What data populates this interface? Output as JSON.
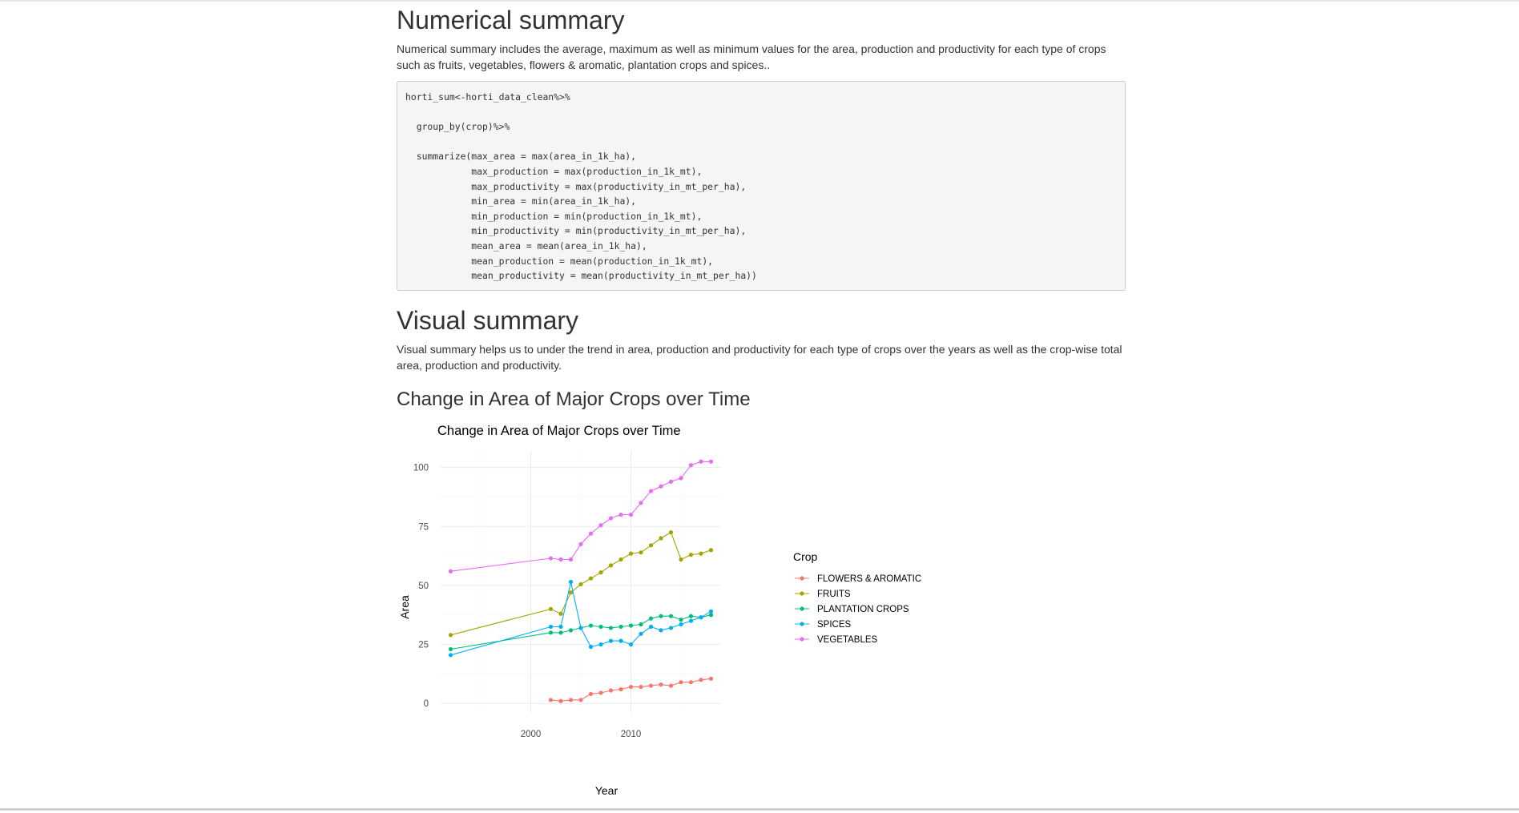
{
  "sections": {
    "numerical_title": "Numerical summary",
    "numerical_text": "Numerical summary includes the average, maximum as well as minimum values for the area, production and productivity for each type of crops such as fruits, vegetables, flowers & aromatic, plantation crops and spices..",
    "code": "horti_sum<-horti_data_clean%>%\n\n  group_by(crop)%>%\n\n  summarize(max_area = max(area_in_1k_ha),\n            max_production = max(production_in_1k_mt),\n            max_productivity = max(productivity_in_mt_per_ha),\n            min_area = min(area_in_1k_ha),\n            min_production = min(production_in_1k_mt),\n            min_productivity = min(productivity_in_mt_per_ha),\n            mean_area = mean(area_in_1k_ha),\n            mean_production = mean(production_in_1k_mt),\n            mean_productivity = mean(productivity_in_mt_per_ha))",
    "visual_title": "Visual summary",
    "visual_text": "Visual summary helps us to under the trend in area, production and productivity for each type of crops over the years as well as the crop-wise total area, production and productivity.",
    "chart_heading": "Change in Area of Major Crops over Time"
  },
  "chart_data": {
    "type": "line",
    "title": "Change in Area of Major Crops over Time",
    "xlabel": "Year",
    "ylabel": "Area",
    "xlim": [
      1991,
      2019
    ],
    "ylim": [
      -4,
      107
    ],
    "x_ticks": [
      2000,
      2010
    ],
    "y_ticks": [
      0,
      25,
      50,
      75,
      100
    ],
    "grid": true,
    "legend_title": "Crop",
    "legend_position": "right",
    "series": [
      {
        "name": "FLOWERS & AROMATIC",
        "color": "#F8766D",
        "x": [
          2002,
          2003,
          2004,
          2005,
          2006,
          2007,
          2008,
          2009,
          2010,
          2011,
          2012,
          2013,
          2014,
          2015,
          2016,
          2017,
          2018
        ],
        "y": [
          1.5,
          1.0,
          1.5,
          1.5,
          4,
          4.5,
          5.5,
          6,
          7,
          7,
          7.5,
          8,
          7.5,
          9,
          9,
          10,
          10.5
        ]
      },
      {
        "name": "FRUITS",
        "color": "#A3A500",
        "x": [
          1992,
          2002,
          2003,
          2004,
          2005,
          2006,
          2007,
          2008,
          2009,
          2010,
          2011,
          2012,
          2013,
          2014,
          2015,
          2016,
          2017,
          2018
        ],
        "y": [
          29,
          40,
          38,
          47,
          50.5,
          53,
          55.5,
          58.5,
          61,
          63.5,
          64,
          67,
          70,
          72.5,
          61,
          63,
          63.5,
          65
        ]
      },
      {
        "name": "PLANTATION CROPS",
        "color": "#00BF7D",
        "x": [
          1992,
          2002,
          2003,
          2004,
          2005,
          2006,
          2007,
          2008,
          2009,
          2010,
          2011,
          2012,
          2013,
          2014,
          2015,
          2016,
          2017,
          2018
        ],
        "y": [
          23,
          30,
          30,
          31,
          32,
          33,
          32.5,
          32,
          32.5,
          33,
          33.5,
          36,
          37,
          37,
          35.5,
          37,
          36.5,
          37.5
        ]
      },
      {
        "name": "SPICES",
        "color": "#00B0F6",
        "x": [
          1992,
          2002,
          2003,
          2004,
          2005,
          2006,
          2007,
          2008,
          2009,
          2010,
          2011,
          2012,
          2013,
          2014,
          2015,
          2016,
          2017,
          2018
        ],
        "y": [
          20.5,
          32.5,
          32.5,
          51.5,
          32,
          24,
          25,
          26.5,
          26.5,
          25,
          29.5,
          32.5,
          31,
          32,
          33.5,
          35,
          36.5,
          39
        ]
      },
      {
        "name": "VEGETABLES",
        "color": "#E76BF3",
        "x": [
          1992,
          2002,
          2003,
          2004,
          2005,
          2006,
          2007,
          2008,
          2009,
          2010,
          2011,
          2012,
          2013,
          2014,
          2015,
          2016,
          2017,
          2018
        ],
        "y": [
          56,
          61.5,
          61,
          61,
          67.5,
          72,
          75.5,
          78.5,
          80,
          80,
          85,
          90,
          92,
          94,
          95.5,
          101,
          102.5,
          102.5
        ]
      }
    ]
  }
}
